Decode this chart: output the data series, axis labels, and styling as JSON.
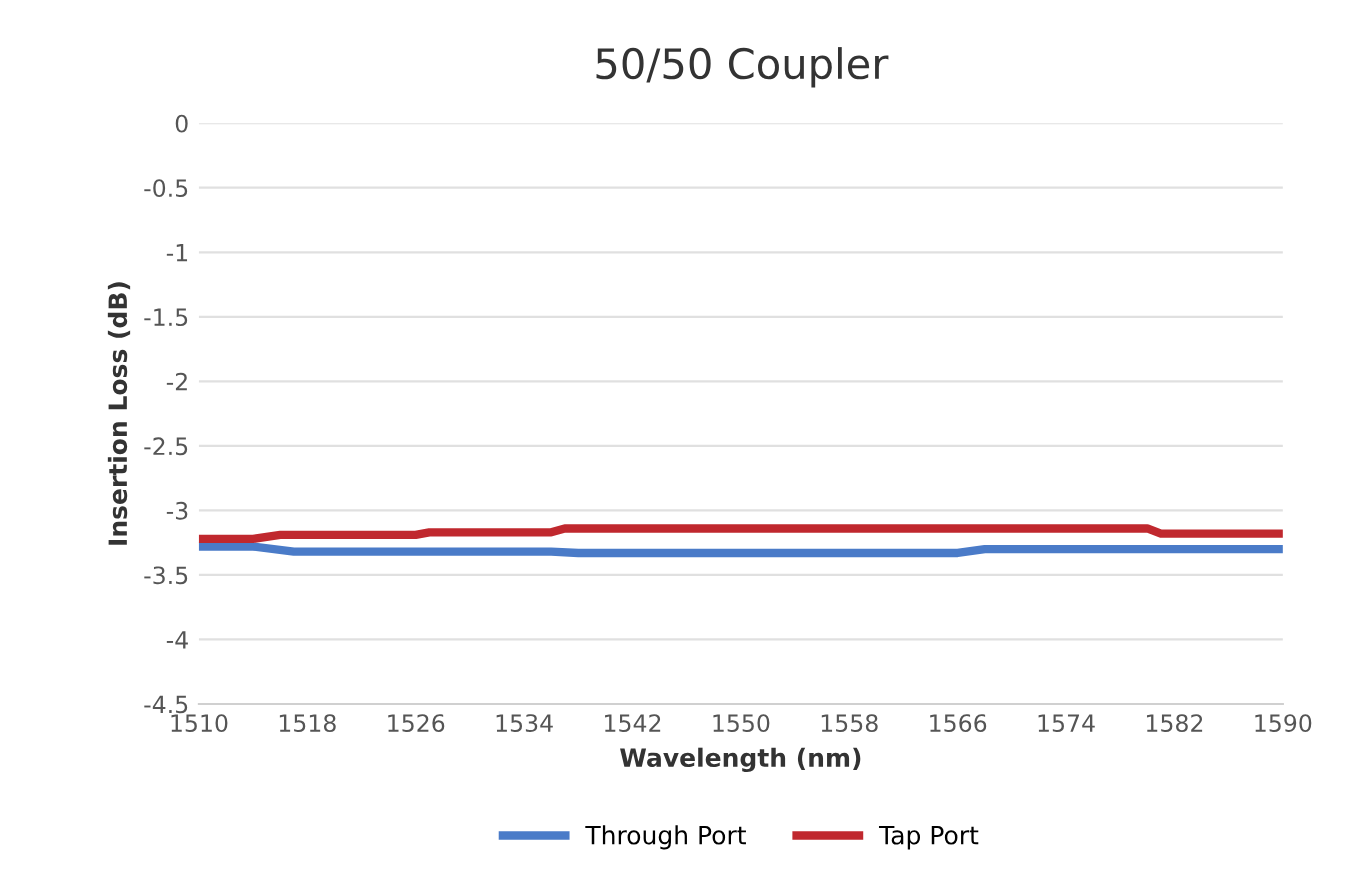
{
  "chart_data": {
    "type": "line",
    "title": "50/50 Coupler",
    "xlabel": "Wavelength (nm)",
    "ylabel": "Insertion Loss (dB)",
    "series": [
      {
        "name": "Through Port",
        "color": "#4a7bc8",
        "x": [
          1510,
          1514,
          1517,
          1536,
          1538,
          1566,
          1568,
          1590
        ],
        "values": [
          -3.28,
          -3.28,
          -3.32,
          -3.32,
          -3.33,
          -3.33,
          -3.3,
          -3.3
        ]
      },
      {
        "name": "Tap Port",
        "color": "#c0282e",
        "x": [
          1510,
          1514,
          1516,
          1526,
          1527,
          1536,
          1537,
          1580,
          1581,
          1590
        ],
        "values": [
          -3.22,
          -3.22,
          -3.19,
          -3.19,
          -3.17,
          -3.17,
          -3.14,
          -3.14,
          -3.18,
          -3.18
        ]
      }
    ],
    "xlim": [
      1510,
      1590
    ],
    "xticks": [
      1510,
      1518,
      1526,
      1534,
      1542,
      1550,
      1558,
      1566,
      1574,
      1582,
      1590
    ],
    "ylim": [
      -4.5,
      0
    ],
    "yticks": [
      0,
      -0.5,
      -1,
      -1.5,
      -2,
      -2.5,
      -3,
      -3.5,
      -4,
      -4.5
    ],
    "grid": "y",
    "legend": "bottom",
    "marker": "none",
    "line_style": "solid"
  }
}
